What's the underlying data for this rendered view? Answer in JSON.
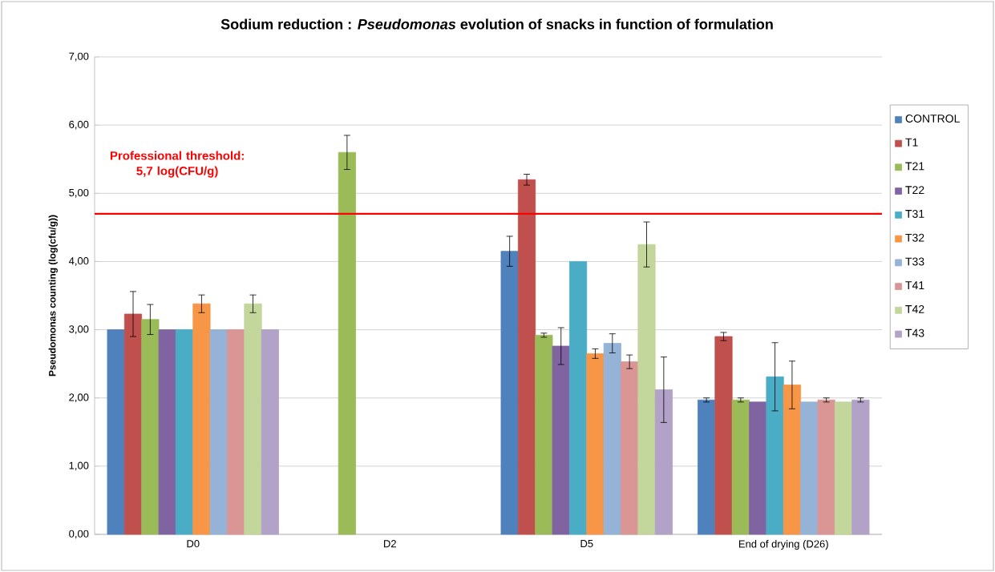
{
  "chart_data": {
    "type": "bar",
    "title": "Sodium reduction : *Pseudomonas*  evolution of snacks in function of formulation",
    "ylabel": "Pseudomonas counting (log(cfu/g))",
    "categories": [
      "D0",
      "D2",
      "D5",
      "End of drying (D26)"
    ],
    "series": [
      {
        "name": "CONTROL",
        "color": "#4f81bd",
        "values": [
          3.0,
          null,
          4.15,
          1.97
        ],
        "errors": [
          null,
          null,
          0.22,
          0.03
        ]
      },
      {
        "name": "T1",
        "color": "#c0504d",
        "values": [
          3.23,
          null,
          5.2,
          2.9
        ],
        "errors": [
          0.33,
          null,
          0.08,
          0.06
        ]
      },
      {
        "name": "T21",
        "color": "#9bbb59",
        "values": [
          3.15,
          5.6,
          2.92,
          1.97
        ],
        "errors": [
          0.22,
          0.25,
          0.03,
          0.03
        ]
      },
      {
        "name": "T22",
        "color": "#8064a2",
        "values": [
          3.0,
          null,
          2.76,
          1.94
        ],
        "errors": [
          null,
          null,
          0.27,
          null
        ]
      },
      {
        "name": "T31",
        "color": "#4bacc6",
        "values": [
          3.0,
          null,
          4.0,
          2.31
        ],
        "errors": [
          null,
          null,
          null,
          0.5
        ]
      },
      {
        "name": "T32",
        "color": "#f79646",
        "values": [
          3.38,
          null,
          2.65,
          2.19
        ],
        "errors": [
          0.13,
          null,
          0.07,
          0.35
        ]
      },
      {
        "name": "T33",
        "color": "#95b3d7",
        "values": [
          3.0,
          null,
          2.8,
          1.94
        ],
        "errors": [
          null,
          null,
          0.14,
          null
        ]
      },
      {
        "name": "T41",
        "color": "#d99694",
        "values": [
          3.0,
          null,
          2.53,
          1.97
        ],
        "errors": [
          null,
          null,
          0.1,
          0.03
        ]
      },
      {
        "name": "T42",
        "color": "#c3d69b",
        "values": [
          3.38,
          null,
          4.25,
          1.94
        ],
        "errors": [
          0.13,
          null,
          0.33,
          null
        ]
      },
      {
        "name": "T43",
        "color": "#b2a2c7",
        "values": [
          3.0,
          null,
          2.12,
          1.97
        ],
        "errors": [
          null,
          null,
          0.48,
          0.03
        ]
      }
    ],
    "ylim": [
      0,
      7
    ],
    "yticks": [
      {
        "value": 0,
        "label": "0,00"
      },
      {
        "value": 1,
        "label": "1,00"
      },
      {
        "value": 2,
        "label": "2,00"
      },
      {
        "value": 3,
        "label": "3,00"
      },
      {
        "value": 4,
        "label": "4,00"
      },
      {
        "value": 5,
        "label": "5,00"
      },
      {
        "value": 6,
        "label": "6,00"
      },
      {
        "value": 7,
        "label": "7,00"
      }
    ],
    "grid": "y",
    "legend": "right",
    "annotations": [
      "Professional threshold: 5,7 log(CFU/g)"
    ],
    "ref_lines": [
      {
        "axis": "y",
        "value": 4.7,
        "color": "#ff0000"
      }
    ]
  }
}
